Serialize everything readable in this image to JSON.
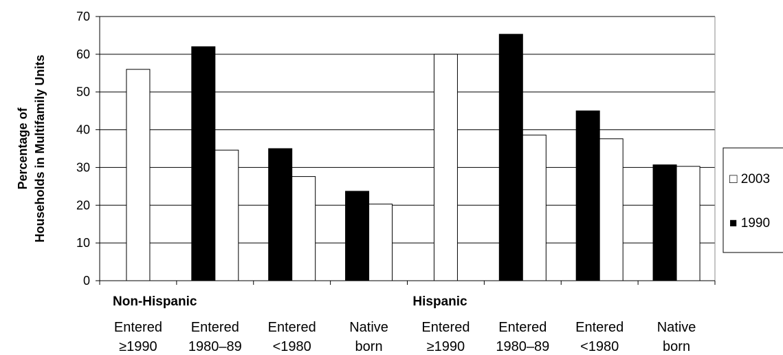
{
  "chart_data": {
    "type": "bar",
    "ylabel_lines": [
      "Percentage of",
      "Households in Multifamily Units"
    ],
    "ylim": [
      0,
      70
    ],
    "yticks": [
      0,
      10,
      20,
      30,
      40,
      50,
      60,
      70
    ],
    "grid": true,
    "legend_position": "right",
    "groups": [
      "Non-Hispanic",
      "Hispanic"
    ],
    "categories": [
      {
        "group": "Non-Hispanic",
        "label_lines": [
          "Entered",
          "≥1990"
        ]
      },
      {
        "group": "Non-Hispanic",
        "label_lines": [
          "Entered",
          "1980–89"
        ]
      },
      {
        "group": "Non-Hispanic",
        "label_lines": [
          "Entered",
          "<1980"
        ]
      },
      {
        "group": "Non-Hispanic",
        "label_lines": [
          "Native",
          "born"
        ]
      },
      {
        "group": "Hispanic",
        "label_lines": [
          "Entered",
          "≥1990"
        ]
      },
      {
        "group": "Hispanic",
        "label_lines": [
          "Entered",
          "1980–89"
        ]
      },
      {
        "group": "Hispanic",
        "label_lines": [
          "Entered",
          "<1980"
        ]
      },
      {
        "group": "Hispanic",
        "label_lines": [
          "Native",
          "born"
        ]
      }
    ],
    "series": [
      {
        "name": "1990",
        "color": "#000000",
        "values": [
          null,
          62,
          35,
          23.7,
          null,
          65.3,
          45,
          30.7
        ]
      },
      {
        "name": "2003",
        "color": "#ffffff",
        "values": [
          56,
          34.6,
          27.6,
          20.3,
          60,
          38.6,
          37.6,
          30.3
        ]
      }
    ],
    "legend": [
      {
        "name": "2003",
        "color": "#ffffff",
        "marker": "□ 2003"
      },
      {
        "name": "1990",
        "color": "#000000",
        "marker": "■ 1990"
      }
    ]
  }
}
